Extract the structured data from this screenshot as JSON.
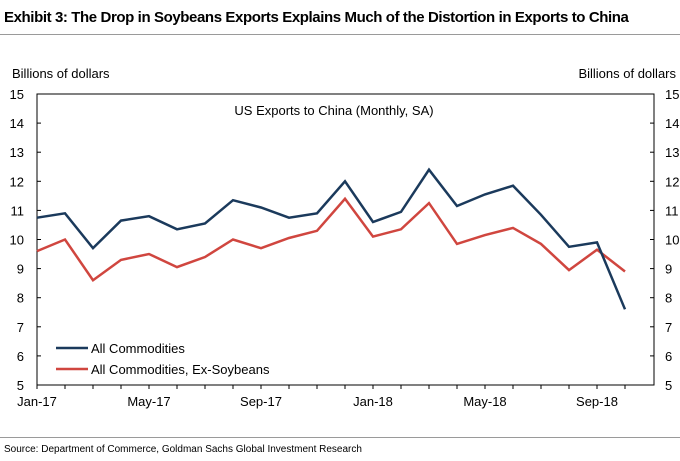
{
  "header": {
    "title": "Exhibit 3: The Drop in Soybeans Exports Explains Much of the Distortion in Exports to China"
  },
  "footer": {
    "source": "Source: Department of Commerce, Goldman Sachs Global Investment Research"
  },
  "chart_data": {
    "type": "line",
    "title": "US Exports to China (Monthly, SA)",
    "ylabel_left": "Billions of dollars",
    "ylabel_right": "Billions of dollars",
    "ylim": [
      5,
      15
    ],
    "yticks": [
      5,
      6,
      7,
      8,
      9,
      10,
      11,
      12,
      13,
      14,
      15
    ],
    "x": [
      "Jan-17",
      "Feb-17",
      "Mar-17",
      "Apr-17",
      "May-17",
      "Jun-17",
      "Jul-17",
      "Aug-17",
      "Sep-17",
      "Oct-17",
      "Nov-17",
      "Dec-17",
      "Jan-18",
      "Feb-18",
      "Mar-18",
      "Apr-18",
      "May-18",
      "Jun-18",
      "Jul-18",
      "Aug-18",
      "Sep-18",
      "Oct-18"
    ],
    "xtick_labels": [
      "Jan-17",
      "May-17",
      "Sep-17",
      "Jan-18",
      "May-18",
      "Sep-18"
    ],
    "grid": false,
    "legend_position": "bottom-left",
    "series": [
      {
        "name": "All Commodities",
        "color": "#1b3a5c",
        "values": [
          10.75,
          10.9,
          9.7,
          10.65,
          10.8,
          10.35,
          10.55,
          11.35,
          11.1,
          10.75,
          10.9,
          12.0,
          10.6,
          10.95,
          12.4,
          11.15,
          11.55,
          11.85,
          10.85,
          9.75,
          9.9,
          7.6
        ]
      },
      {
        "name": "All Commodities, Ex-Soybeans",
        "color": "#d0463f",
        "values": [
          9.6,
          10.0,
          8.6,
          9.3,
          9.5,
          9.05,
          9.4,
          10.0,
          9.7,
          10.05,
          10.3,
          11.4,
          10.1,
          10.35,
          11.25,
          9.85,
          10.15,
          10.4,
          9.85,
          8.95,
          9.65,
          8.9
        ]
      }
    ]
  }
}
